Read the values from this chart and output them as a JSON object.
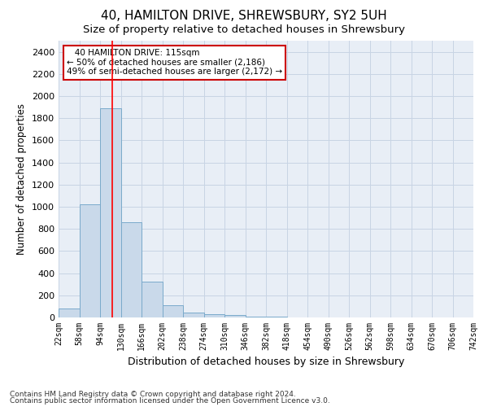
{
  "title": "40, HAMILTON DRIVE, SHREWSBURY, SY2 5UH",
  "subtitle": "Size of property relative to detached houses in Shrewsbury",
  "xlabel": "Distribution of detached houses by size in Shrewsbury",
  "ylabel": "Number of detached properties",
  "footnote1": "Contains HM Land Registry data © Crown copyright and database right 2024.",
  "footnote2": "Contains public sector information licensed under the Open Government Licence v3.0.",
  "annotation_line1": "   40 HAMILTON DRIVE: 115sqm",
  "annotation_line2": "← 50% of detached houses are smaller (2,186)",
  "annotation_line3": "49% of semi-detached houses are larger (2,172) →",
  "bar_color": "#c9d9ea",
  "bar_edge_color": "#7aaacb",
  "red_line_x": 115,
  "bins": [
    22,
    58,
    94,
    130,
    166,
    202,
    238,
    274,
    310,
    346,
    382,
    418,
    454,
    490,
    526,
    562,
    598,
    634,
    670,
    706,
    742
  ],
  "bar_heights": [
    80,
    1020,
    1890,
    860,
    320,
    110,
    45,
    30,
    20,
    5,
    5,
    0,
    0,
    0,
    0,
    0,
    0,
    0,
    0,
    0
  ],
  "ylim": [
    0,
    2500
  ],
  "yticks": [
    0,
    200,
    400,
    600,
    800,
    1000,
    1200,
    1400,
    1600,
    1800,
    2000,
    2200,
    2400
  ],
  "grid_color": "#c8d4e4",
  "background_color": "#e8eef6",
  "title_fontsize": 11,
  "subtitle_fontsize": 9.5,
  "annotation_box_color": "#ffffff",
  "annotation_box_edge": "#cc0000"
}
